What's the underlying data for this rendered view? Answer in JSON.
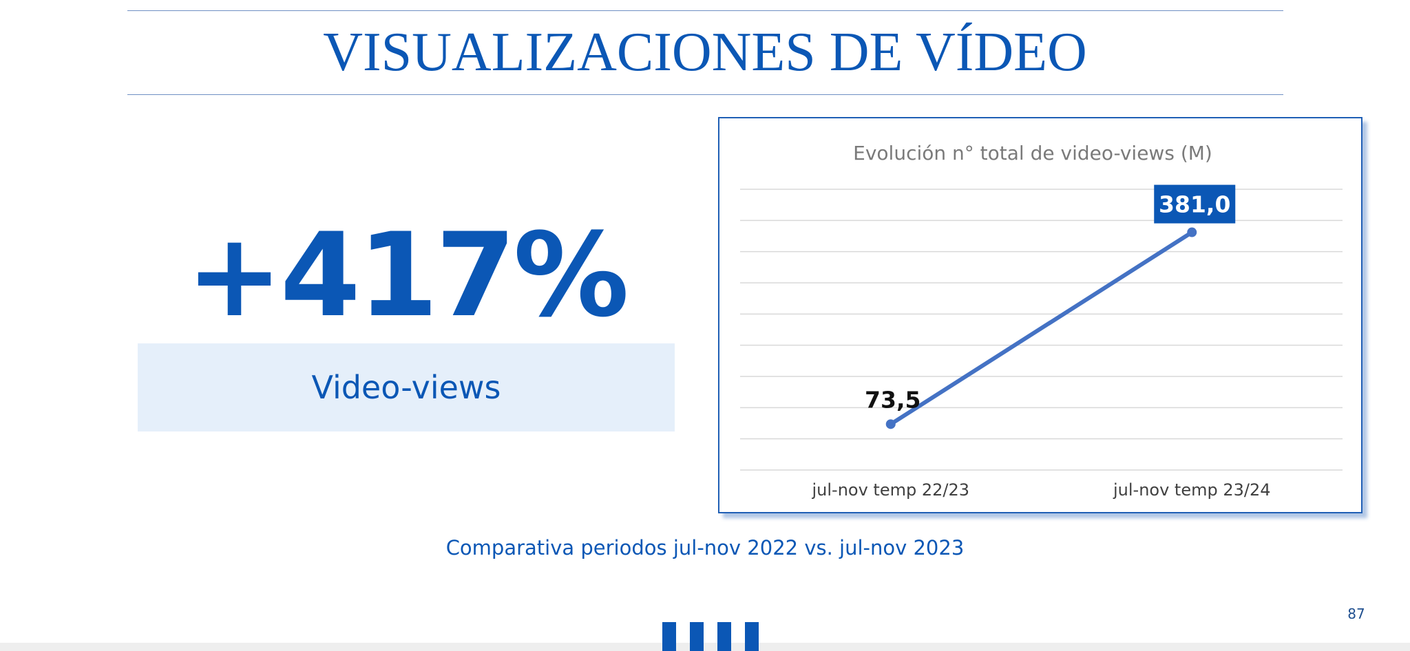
{
  "slide": {
    "title": "VISUALIZACIONES DE VÍDEO",
    "page_number": "87",
    "caption": "Comparativa periodos jul-nov 2022 vs. jul-nov 2023"
  },
  "kpi": {
    "value": "+417%",
    "label": "Video-views"
  },
  "colors": {
    "brand_blue": "#0b57b5",
    "line_blue": "#4472c4",
    "kpi_box_bg": "#e5effa",
    "gridline": "#d9d9d9"
  },
  "chart_data": {
    "type": "line",
    "title": "Evolución n° total de video-views (M)",
    "categories": [
      "jul-nov temp 22/23",
      "jul-nov temp 23/24"
    ],
    "series": [
      {
        "values": [
          73.5,
          381.0
        ],
        "labels": [
          "73,5",
          "381,0"
        ]
      }
    ],
    "ylim": [
      0,
      450
    ],
    "grid": true,
    "y_axis_labels_visible": false,
    "legend": "none"
  }
}
